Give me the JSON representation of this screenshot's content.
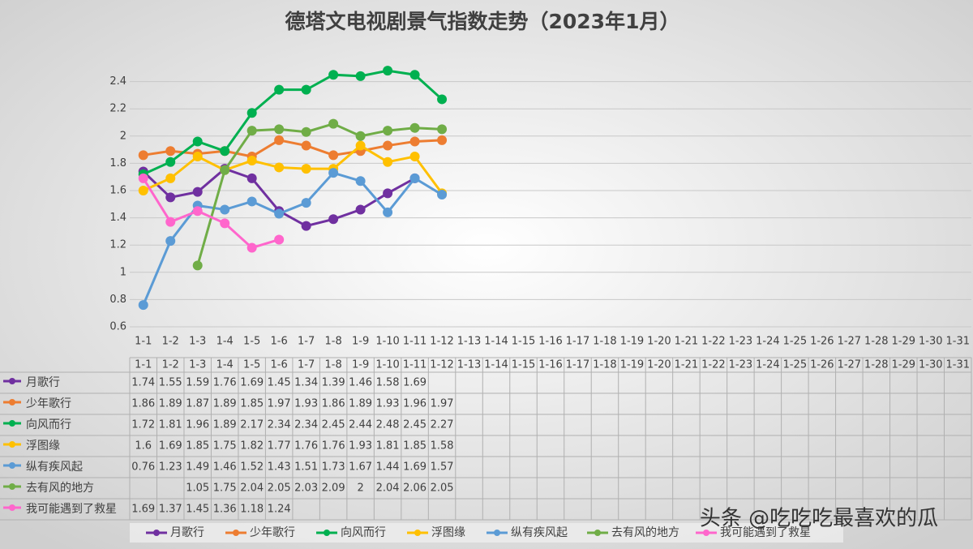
{
  "chart_data": {
    "type": "line",
    "title": "德塔文电视剧景气指数走势（2023年1月）",
    "categories": [
      "1-1",
      "1-2",
      "1-3",
      "1-4",
      "1-5",
      "1-6",
      "1-7",
      "1-8",
      "1-9",
      "1-10",
      "1-11",
      "1-12",
      "1-13",
      "1-14",
      "1-15",
      "1-16",
      "1-17",
      "1-18",
      "1-19",
      "1-20",
      "1-21",
      "1-22",
      "1-23",
      "1-24",
      "1-25",
      "1-26",
      "1-27",
      "1-28",
      "1-29",
      "1-30",
      "1-31"
    ],
    "series": [
      {
        "name": "月歌行",
        "color": "#7030a0",
        "values": [
          1.74,
          1.55,
          1.59,
          1.76,
          1.69,
          1.45,
          1.34,
          1.39,
          1.46,
          1.58,
          1.69,
          null,
          null,
          null,
          null,
          null,
          null,
          null,
          null,
          null,
          null,
          null,
          null,
          null,
          null,
          null,
          null,
          null,
          null,
          null,
          null
        ]
      },
      {
        "name": "少年歌行",
        "color": "#ed7d31",
        "values": [
          1.86,
          1.89,
          1.87,
          1.89,
          1.85,
          1.97,
          1.93,
          1.86,
          1.89,
          1.93,
          1.96,
          1.97,
          null,
          null,
          null,
          null,
          null,
          null,
          null,
          null,
          null,
          null,
          null,
          null,
          null,
          null,
          null,
          null,
          null,
          null,
          null
        ]
      },
      {
        "name": "向风而行",
        "color": "#00b050",
        "values": [
          1.72,
          1.81,
          1.96,
          1.89,
          2.17,
          2.34,
          2.34,
          2.45,
          2.44,
          2.48,
          2.45,
          2.27,
          null,
          null,
          null,
          null,
          null,
          null,
          null,
          null,
          null,
          null,
          null,
          null,
          null,
          null,
          null,
          null,
          null,
          null,
          null
        ]
      },
      {
        "name": "浮图缘",
        "color": "#ffc000",
        "values": [
          1.6,
          1.69,
          1.85,
          1.75,
          1.82,
          1.77,
          1.76,
          1.76,
          1.93,
          1.81,
          1.85,
          1.58,
          null,
          null,
          null,
          null,
          null,
          null,
          null,
          null,
          null,
          null,
          null,
          null,
          null,
          null,
          null,
          null,
          null,
          null,
          null
        ]
      },
      {
        "name": "纵有疾风起",
        "color": "#5b9bd5",
        "values": [
          0.76,
          1.23,
          1.49,
          1.46,
          1.52,
          1.43,
          1.51,
          1.73,
          1.67,
          1.44,
          1.69,
          1.57,
          null,
          null,
          null,
          null,
          null,
          null,
          null,
          null,
          null,
          null,
          null,
          null,
          null,
          null,
          null,
          null,
          null,
          null,
          null
        ]
      },
      {
        "name": "去有风的地方",
        "color": "#70ad47",
        "values": [
          null,
          null,
          1.05,
          1.75,
          2.04,
          2.05,
          2.03,
          2.09,
          2,
          2.04,
          2.06,
          2.05,
          null,
          null,
          null,
          null,
          null,
          null,
          null,
          null,
          null,
          null,
          null,
          null,
          null,
          null,
          null,
          null,
          null,
          null,
          null
        ]
      },
      {
        "name": "我可能遇到了救星",
        "color": "#ff66cc",
        "values": [
          1.69,
          1.37,
          1.45,
          1.36,
          1.18,
          1.24,
          null,
          null,
          null,
          null,
          null,
          null,
          null,
          null,
          null,
          null,
          null,
          null,
          null,
          null,
          null,
          null,
          null,
          null,
          null,
          null,
          null,
          null,
          null,
          null,
          null
        ]
      }
    ],
    "ylim": [
      0.6,
      2.6
    ],
    "yticks": [
      0.6,
      0.8,
      1,
      1.2,
      1.4,
      1.6,
      1.8,
      2,
      2.2,
      2.4
    ],
    "grid": true,
    "legend": "bottom",
    "watermark": "头条 @吃吃吃最喜欢的瓜"
  }
}
